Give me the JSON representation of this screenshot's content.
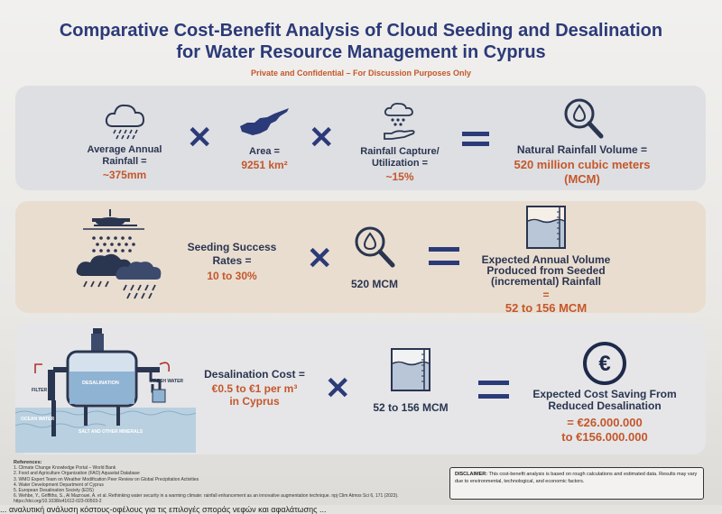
{
  "title": {
    "line1": "Comparative Cost-Benefit Analysis of Cloud Seeding and Desalination",
    "line2": "for Water Resource Management in Cyprus",
    "subtitle": "Private and Confidential – For Discussion Purposes Only"
  },
  "row1": {
    "rainfall_label": "Average Annual Rainfall =",
    "rainfall_value": "~375mm",
    "area_label": "Area =",
    "area_value": "9251 km²",
    "capture_label": "Rainfall Capture/ Utilization =",
    "capture_value": "~15%",
    "result_label": "Natural Rainfall Volume =",
    "result_value": "520 million cubic meters (MCM)"
  },
  "row2": {
    "seeding_label": "Seeding Success Rates =",
    "seeding_value": "10 to 30%",
    "volume_value": "520 MCM",
    "result_label": "Expected Annual Volume Produced from Seeded (incremental) Rainfall",
    "result_equals": "=",
    "result_value": "52 to 156 MCM"
  },
  "row3": {
    "diagram_labels": {
      "desalination": "DESALINATION",
      "filter": "FILTER",
      "fresh_water": "FRESH WATER",
      "ocean_water": "OCEAN WATER",
      "salt": "SALT AND OTHER MINERALS"
    },
    "cost_label": "Desalination Cost =",
    "cost_value": "€0.5 to €1 per m³ in Cyprus",
    "volume_value": "52 to 156 MCM",
    "result_label": "Expected Cost Saving From Reduced Desalination",
    "result_value1": "= €26.000.000",
    "result_value2": "to €156.000.000"
  },
  "references": {
    "heading": "References:",
    "items": [
      "1.      Climate Change Knowledge Portal – World Bank",
      "2.      Food and Agriculture Organization (FAO) Aquastat Database",
      "3.      WMO Expert Team on Weather Modification Peer Review on Global Precipitation Activities",
      "4.      Water Development Department of Cyprus",
      "5.      European Desalination Society (EDS)",
      "6.      Wehbe, Y., Griffiths, S., Al Mazrouei, A. et al. Rethinking water security in a warming climate: rainfall enhancement as an innovative augmentation technique. npj Clim Atmos Sci 6, 171 (2023).",
      "         https://doi.org/10.1038/s41612-023-00503-2"
    ]
  },
  "disclaimer": {
    "heading": "DISCLAIMER:",
    "text": "This cost-benefit analysis is based on rough calculations and estimated data. Results may vary due to environmental, technological, and economic factors."
  },
  "footer_text": "... αναλυτική ανάλυση κόστους-οφέλους για τις επιλογές σποράς νεφών και αφαλάτωσης ..."
}
